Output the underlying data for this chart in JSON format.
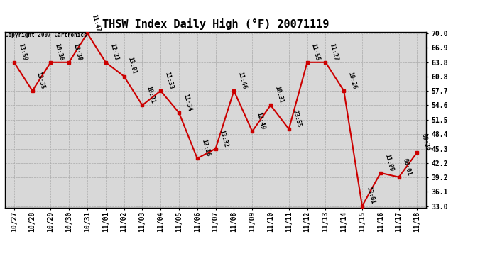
{
  "title": "THSW Index Daily High (°F) 20071119",
  "copyright": "Copyright 2007 Cartronics",
  "x_labels": [
    "10/27",
    "10/28",
    "10/29",
    "10/30",
    "10/31",
    "11/01",
    "11/02",
    "11/03",
    "11/04",
    "11/05",
    "11/06",
    "11/07",
    "11/08",
    "11/09",
    "11/10",
    "11/11",
    "11/12",
    "11/13",
    "11/14",
    "11/15",
    "11/16",
    "11/17",
    "11/18"
  ],
  "y_values": [
    63.8,
    57.7,
    63.8,
    63.8,
    70.0,
    63.8,
    60.8,
    54.6,
    57.7,
    53.0,
    43.2,
    45.3,
    57.7,
    49.0,
    54.6,
    49.5,
    63.8,
    63.8,
    57.7,
    33.0,
    40.1,
    39.2,
    44.5
  ],
  "time_labels": [
    "13:59",
    "13:35",
    "10:36",
    "13:38",
    "11:47",
    "12:21",
    "13:01",
    "10:31",
    "11:33",
    "11:34",
    "12:16",
    "13:32",
    "11:46",
    "12:49",
    "10:31",
    "23:55",
    "11:55",
    "11:27",
    "10:26",
    "13:01",
    "11:09",
    "08:01",
    "09:36"
  ],
  "y_ticks": [
    33.0,
    36.1,
    39.2,
    42.2,
    45.3,
    48.4,
    51.5,
    54.6,
    57.7,
    60.8,
    63.8,
    66.9,
    70.0
  ],
  "y_min": 33.0,
  "y_max": 70.0,
  "line_color": "#cc0000",
  "marker_color": "#cc0000",
  "bg_color": "#ffffff",
  "plot_bg_color": "#d8d8d8",
  "grid_color": "#aaaaaa",
  "title_fontsize": 11,
  "tick_fontsize": 7,
  "label_fontsize": 6
}
